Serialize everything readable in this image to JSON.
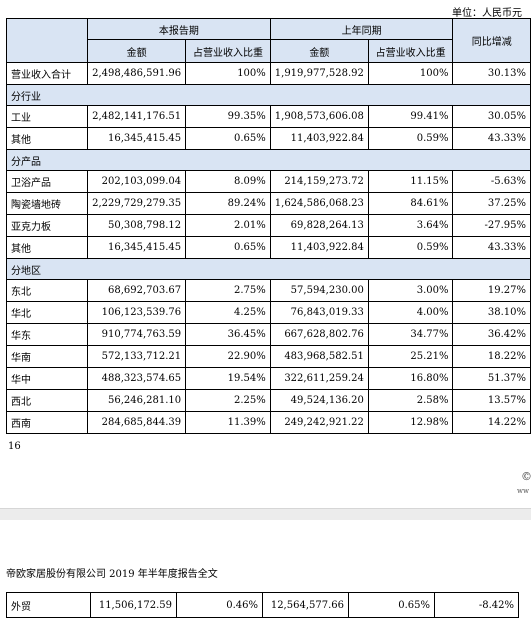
{
  "unit_note": "单位：人民币元",
  "header": {
    "current_period": "本报告期",
    "prior_period": "上年同期",
    "yoy": "同比增减",
    "amount": "金额",
    "share": "占营业收入比重"
  },
  "total": {
    "label": "营业收入合计",
    "cur": "2,498,486,591.96",
    "cur_pct": "100%",
    "prev": "1,919,977,528.92",
    "prev_pct": "100%",
    "yoy": "30.13%"
  },
  "sections": [
    {
      "title": "分行业",
      "rows": [
        {
          "label": "工业",
          "cur": "2,482,141,176.51",
          "cur_pct": "99.35%",
          "prev": "1,908,573,606.08",
          "prev_pct": "99.41%",
          "yoy": "30.05%"
        },
        {
          "label": "其他",
          "cur": "16,345,415.45",
          "cur_pct": "0.65%",
          "prev": "11,403,922.84",
          "prev_pct": "0.59%",
          "yoy": "43.33%"
        }
      ]
    },
    {
      "title": "分产品",
      "rows": [
        {
          "label": "卫浴产品",
          "cur": "202,103,099.04",
          "cur_pct": "8.09%",
          "prev": "214,159,273.72",
          "prev_pct": "11.15%",
          "yoy": "-5.63%"
        },
        {
          "label": "陶瓷墙地砖",
          "cur": "2,229,729,279.35",
          "cur_pct": "89.24%",
          "prev": "1,624,586,068.23",
          "prev_pct": "84.61%",
          "yoy": "37.25%"
        },
        {
          "label": "亚克力板",
          "cur": "50,308,798.12",
          "cur_pct": "2.01%",
          "prev": "69,828,264.13",
          "prev_pct": "3.64%",
          "yoy": "-27.95%"
        },
        {
          "label": "其他",
          "cur": "16,345,415.45",
          "cur_pct": "0.65%",
          "prev": "11,403,922.84",
          "prev_pct": "0.59%",
          "yoy": "43.33%"
        }
      ]
    },
    {
      "title": "分地区",
      "rows": [
        {
          "label": "东北",
          "cur": "68,692,703.67",
          "cur_pct": "2.75%",
          "prev": "57,594,230.00",
          "prev_pct": "3.00%",
          "yoy": "19.27%"
        },
        {
          "label": "华北",
          "cur": "106,123,539.76",
          "cur_pct": "4.25%",
          "prev": "76,843,019.33",
          "prev_pct": "4.00%",
          "yoy": "38.10%"
        },
        {
          "label": "华东",
          "cur": "910,774,763.59",
          "cur_pct": "36.45%",
          "prev": "667,628,802.76",
          "prev_pct": "34.77%",
          "yoy": "36.42%"
        },
        {
          "label": "华南",
          "cur": "572,133,712.21",
          "cur_pct": "22.90%",
          "prev": "483,968,582.51",
          "prev_pct": "25.21%",
          "yoy": "18.22%"
        },
        {
          "label": "华中",
          "cur": "488,323,574.65",
          "cur_pct": "19.54%",
          "prev": "322,611,259.24",
          "prev_pct": "16.80%",
          "yoy": "51.37%"
        },
        {
          "label": "西北",
          "cur": "56,246,281.10",
          "cur_pct": "2.25%",
          "prev": "49,524,136.20",
          "prev_pct": "2.58%",
          "yoy": "13.57%"
        },
        {
          "label": "西南",
          "cur": "284,685,844.39",
          "cur_pct": "11.39%",
          "prev": "249,242,921.22",
          "prev_pct": "12.98%",
          "yoy": "14.22%"
        }
      ]
    }
  ],
  "page_number": "16",
  "watermark_text": "ww",
  "footer_title": "帝欧家居股份有限公司 2019 年半年度报告全文",
  "continued_row": {
    "label": "外贸",
    "cur": "11,506,172.59",
    "cur_pct": "0.46%",
    "prev": "12,564,577.66",
    "prev_pct": "0.65%",
    "yoy": "-8.42%"
  }
}
